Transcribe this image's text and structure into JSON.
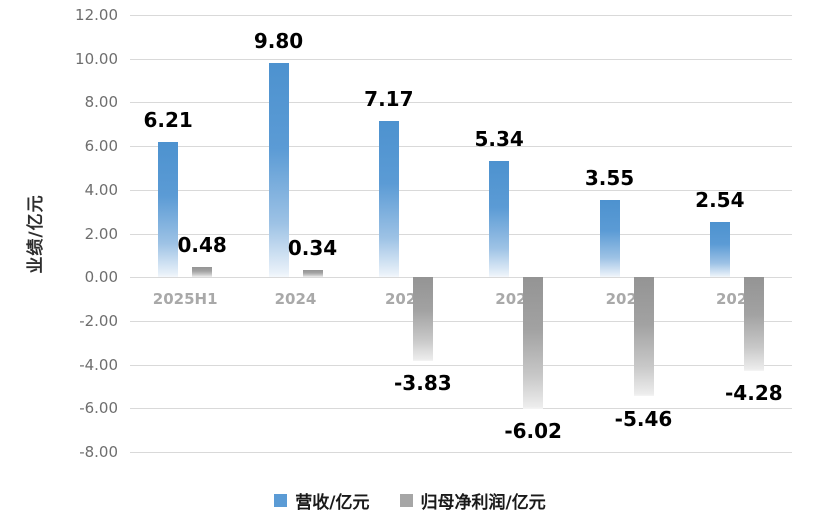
{
  "chart_data": {
    "type": "bar",
    "title": "",
    "ylabel": "业绩/亿元",
    "xlabel": "",
    "categories": [
      "2025H1",
      "2024",
      "2023",
      "2022",
      "2021",
      "2020"
    ],
    "series": [
      {
        "name": "营收/亿元",
        "color": "#5B9BD5",
        "values": [
          6.21,
          9.8,
          7.17,
          5.34,
          3.55,
          2.54
        ],
        "labels": [
          "6.21",
          "9.80",
          "7.17",
          "5.34",
          "3.55",
          "2.54"
        ]
      },
      {
        "name": "归母净利润/亿元",
        "color": "#A6A6A6",
        "values": [
          0.48,
          0.34,
          -3.83,
          -6.02,
          -5.46,
          -4.28
        ],
        "labels": [
          "0.48",
          "0.34",
          "-3.83",
          "-6.02",
          "-5.46",
          "-4.28"
        ]
      }
    ],
    "ylim": [
      -8,
      12
    ],
    "yticks": [
      12,
      10,
      8,
      6,
      4,
      2,
      0,
      -2,
      -4,
      -6,
      -8
    ],
    "ytick_labels": [
      "12.00",
      "10.00",
      "8.00",
      "6.00",
      "4.00",
      "2.00",
      "0.00",
      "-2.00",
      "-4.00",
      "-6.00",
      "-8.00"
    ],
    "grid": true,
    "legend_position": "bottom"
  }
}
